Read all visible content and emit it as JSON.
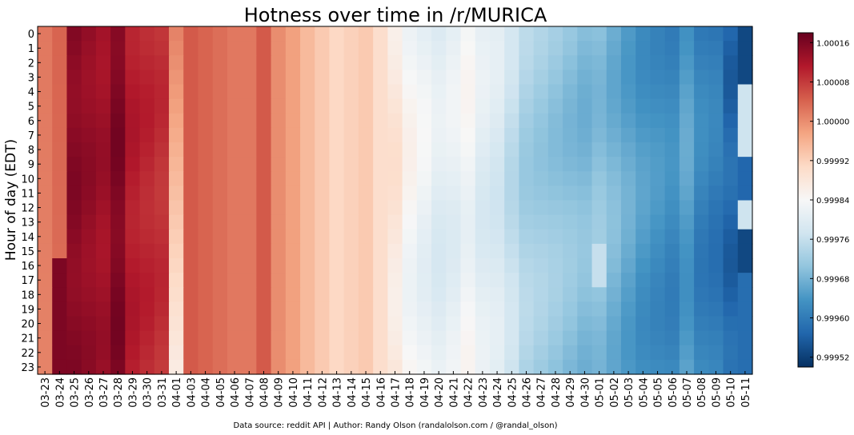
{
  "chart_data": {
    "type": "heatmap",
    "title": "Hotness over time in /r/MURICA",
    "xlabel": "",
    "ylabel": "Hour of day (EDT)",
    "source": "Data source: reddit API | Author: Randy Olson (randalolson.com / @randal_olson)",
    "x_categories": [
      "03-23",
      "03-24",
      "03-25",
      "03-26",
      "03-27",
      "03-28",
      "03-29",
      "03-30",
      "03-31",
      "04-01",
      "04-03",
      "04-04",
      "04-05",
      "04-06",
      "04-07",
      "04-08",
      "04-09",
      "04-10",
      "04-11",
      "04-12",
      "04-13",
      "04-14",
      "04-15",
      "04-16",
      "04-17",
      "04-18",
      "04-19",
      "04-20",
      "04-21",
      "04-22",
      "04-23",
      "04-24",
      "04-25",
      "04-26",
      "04-27",
      "04-28",
      "04-29",
      "04-30",
      "05-01",
      "05-02",
      "05-03",
      "05-04",
      "05-05",
      "05-06",
      "05-07",
      "05-08",
      "05-09",
      "05-10",
      "05-11"
    ],
    "y_categories": [
      "0",
      "1",
      "2",
      "3",
      "4",
      "5",
      "6",
      "7",
      "8",
      "9",
      "10",
      "11",
      "12",
      "13",
      "14",
      "15",
      "16",
      "17",
      "18",
      "19",
      "20",
      "21",
      "22",
      "23"
    ],
    "colorbar": {
      "min": 0.9995,
      "max": 1.00018,
      "ticks": [
        "1.00016",
        "1.00008",
        "1.00000",
        "0.99992",
        "0.99984",
        "0.99976",
        "0.99968",
        "0.99960",
        "0.99952"
      ],
      "colors": [
        "#053061",
        "#2166ac",
        "#4393c3",
        "#92c5de",
        "#d1e5f0",
        "#f7f7f7",
        "#fddbc7",
        "#f4a582",
        "#d6604d",
        "#b2182b",
        "#67001f"
      ]
    },
    "value_range_approx": [
      0.9995,
      1.00018
    ],
    "note_values": "cell values are estimated from the color scale"
  }
}
